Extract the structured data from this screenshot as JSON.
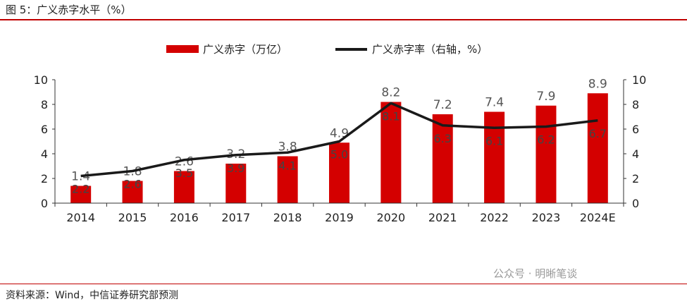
{
  "figure": {
    "title": "图 5：广义赤字水平（%）",
    "source": "资料来源：Wind，中信证券研究部预测",
    "watermark": "公众号 · 明晰笔谈"
  },
  "colors": {
    "bar": "#d40000",
    "line": "#1a1a1a",
    "rule": "#c00000",
    "bar_label": "#555555",
    "line_label": "#444444"
  },
  "chart_data": {
    "type": "bar",
    "categories": [
      "2014",
      "2015",
      "2016",
      "2017",
      "2018",
      "2019",
      "2020",
      "2021",
      "2022",
      "2023",
      "2024E"
    ],
    "series": [
      {
        "name": "广义赤字（万亿）",
        "type": "bar",
        "axis": "left",
        "values": [
          1.4,
          1.8,
          2.6,
          3.2,
          3.8,
          4.9,
          8.2,
          7.2,
          7.4,
          7.9,
          8.9
        ]
      },
      {
        "name": "广义赤字率（右轴，%）",
        "type": "line",
        "axis": "right",
        "values": [
          2.2,
          2.6,
          3.5,
          3.9,
          4.1,
          5.0,
          8.1,
          6.3,
          6.1,
          6.2,
          6.7
        ]
      }
    ],
    "ylim": [
      0,
      10
    ],
    "y2lim": [
      0,
      10
    ],
    "yticks": [
      0,
      2,
      4,
      6,
      8,
      10
    ],
    "legend_position": "top-center",
    "grid": false
  }
}
